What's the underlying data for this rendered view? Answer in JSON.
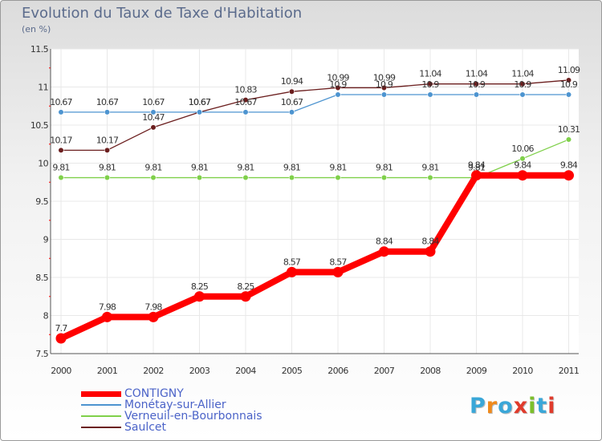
{
  "title": "Evolution du Taux de Taxe d'Habitation",
  "subtitle": "(en %)",
  "logo": {
    "text": "Proxiti",
    "letter_colors": [
      "#3aa7d8",
      "#f08a1c",
      "#3aa7d8",
      "#e03b2c",
      "#7bbf2b",
      "#3aa7d8",
      "#e03b2c"
    ]
  },
  "colors": {
    "contigny": "#ff0000",
    "monetay": "#4d94d0",
    "verneuil": "#7fd04a",
    "saulcet": "#6b1e1e",
    "axis": "#555555",
    "grid": "#e8e8e8"
  },
  "chart_data": {
    "type": "line",
    "title": "Evolution du Taux de Taxe d'Habitation",
    "ylabel": "(en %)",
    "xlabel": "",
    "x": [
      "2000",
      "2001",
      "2002",
      "2003",
      "2004",
      "2005",
      "2006",
      "2007",
      "2008",
      "2009",
      "2010",
      "2011"
    ],
    "ylim": [
      7.5,
      11.5
    ],
    "yticks": [
      "7.5",
      "8",
      "8.5",
      "9",
      "9.5",
      "10",
      "10.5",
      "11",
      "11.5"
    ],
    "grid": true,
    "legend": "bottom-left",
    "series": [
      {
        "name": "CONTIGNY",
        "key": "contigny",
        "values": [
          7.7,
          7.98,
          7.98,
          8.25,
          8.25,
          8.57,
          8.57,
          8.84,
          8.84,
          9.84,
          9.84,
          9.84
        ],
        "labels": [
          "7.7",
          "7.98",
          "7.98",
          "8.25",
          "8.25",
          "8.57",
          "8.57",
          "8.84",
          "8.84",
          "9.84",
          "9.84",
          "9.84"
        ]
      },
      {
        "name": "Monétay-sur-Allier",
        "key": "monetay",
        "values": [
          10.67,
          10.67,
          10.67,
          10.67,
          10.67,
          10.67,
          10.9,
          10.9,
          10.9,
          10.9,
          10.9,
          10.9
        ],
        "labels": [
          "10.67",
          "10.67",
          "10.67",
          "10.67",
          "10.67",
          "10.67",
          "10.9",
          "10.9",
          "10.9",
          "10.9",
          "10.9",
          "10.9"
        ]
      },
      {
        "name": "Verneuil-en-Bourbonnais",
        "key": "verneuil",
        "values": [
          9.81,
          9.81,
          9.81,
          9.81,
          9.81,
          9.81,
          9.81,
          9.81,
          9.81,
          9.81,
          10.06,
          10.31
        ],
        "labels": [
          "9.81",
          "9.81",
          "9.81",
          "9.81",
          "9.81",
          "9.81",
          "9.81",
          "9.81",
          "9.81",
          "9.81",
          "10.06",
          "10.31"
        ]
      },
      {
        "name": "Saulcet",
        "key": "saulcet",
        "values": [
          10.17,
          10.17,
          10.47,
          10.67,
          10.83,
          10.94,
          10.99,
          10.99,
          11.04,
          11.04,
          11.04,
          11.09
        ],
        "labels": [
          "10.17",
          "10.17",
          "10.47",
          "10.67",
          "10.83",
          "10.94",
          "10.99",
          "10.99",
          "11.04",
          "11.04",
          "11.04",
          "11.09"
        ]
      }
    ]
  }
}
